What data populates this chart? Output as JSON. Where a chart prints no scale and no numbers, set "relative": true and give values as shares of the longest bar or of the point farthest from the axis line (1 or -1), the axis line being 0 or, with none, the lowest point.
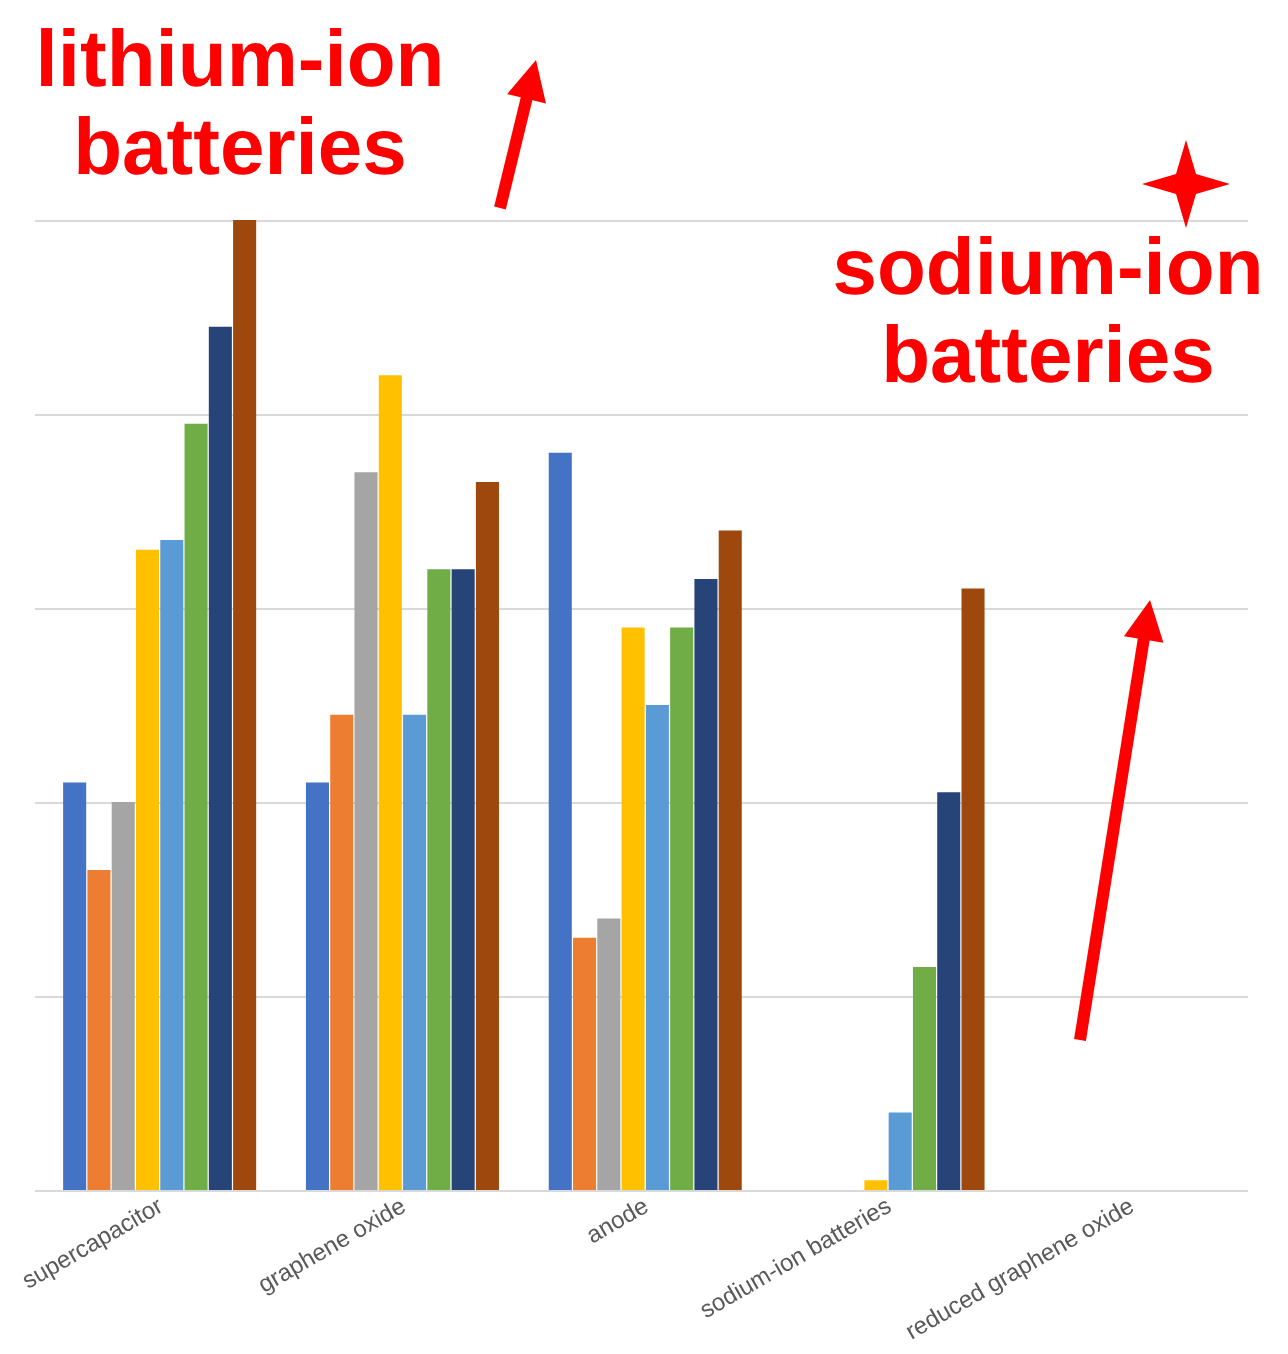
{
  "chart_data": {
    "type": "bar",
    "relative": true,
    "grid": "y",
    "legend": false,
    "categories": [
      "supercapacitor",
      "graphene oxide",
      "anode",
      "sodium-ion batteries",
      "reduced graphene oxide"
    ],
    "series": [
      {
        "color": "#4472c4",
        "values": [
          0.42,
          0.42,
          0.76,
          0,
          null
        ]
      },
      {
        "color": "#ed7d31",
        "values": [
          0.33,
          0.49,
          0.26,
          0,
          null
        ]
      },
      {
        "color": "#a5a5a5",
        "values": [
          0.4,
          0.74,
          0.28,
          0,
          null
        ]
      },
      {
        "color": "#ffc000",
        "values": [
          0.66,
          0.84,
          0.58,
          0.01,
          null
        ]
      },
      {
        "color": "#5b9bd5",
        "values": [
          0.67,
          0.49,
          0.5,
          0.08,
          null
        ]
      },
      {
        "color": "#70ad47",
        "values": [
          0.79,
          0.64,
          0.58,
          0.23,
          null
        ]
      },
      {
        "color": "#264478",
        "values": [
          0.89,
          0.64,
          0.63,
          0.41,
          null
        ]
      },
      {
        "color": "#9e480e",
        "values": [
          1,
          0.73,
          0.68,
          0.62,
          null
        ]
      }
    ],
    "annotations": [
      "lithium-ion batteries",
      "sodium-ion batteries"
    ]
  }
}
